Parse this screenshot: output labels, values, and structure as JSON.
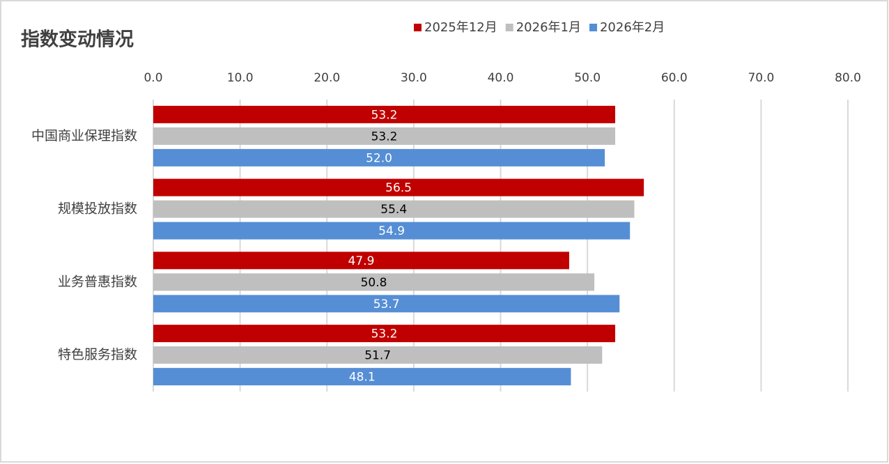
{
  "chart_data": {
    "type": "hbar",
    "title": "指数变动情况",
    "categories": [
      "中国商业保理指数",
      "规模投放指数",
      "业务普惠指数",
      "特色服务指数"
    ],
    "series": [
      {
        "name": "2025年12月",
        "color": "#c00000",
        "values": [
          53.2,
          56.5,
          47.9,
          53.2
        ],
        "value_labels": [
          "53.2",
          "56.5",
          "47.9",
          "53.2"
        ],
        "label_color": "#ffffff"
      },
      {
        "name": "2026年1月",
        "color": "#bfbfbf",
        "values": [
          53.2,
          55.4,
          50.8,
          51.7
        ],
        "value_labels": [
          "53.2",
          "55.4",
          "50.8",
          "51.7"
        ],
        "label_color": "#000000"
      },
      {
        "name": "2026年2月",
        "color": "#558ed5",
        "values": [
          52.0,
          54.9,
          53.7,
          48.1
        ],
        "value_labels": [
          "52.0",
          "54.9",
          "53.7",
          "48.1"
        ],
        "label_color": "#ffffff"
      }
    ],
    "xlim": [
      0,
      80
    ],
    "xticks": [
      {
        "value": 0,
        "label": "0.0"
      },
      {
        "value": 10,
        "label": "10.0"
      },
      {
        "value": 20,
        "label": "20.0"
      },
      {
        "value": 30,
        "label": "30.0"
      },
      {
        "value": 40,
        "label": "40.0"
      },
      {
        "value": 50,
        "label": "50.0"
      },
      {
        "value": 60,
        "label": "60.0"
      },
      {
        "value": 70,
        "label": "70.0"
      },
      {
        "value": 80,
        "label": "80.0"
      }
    ],
    "grid": true,
    "legend": "top"
  }
}
